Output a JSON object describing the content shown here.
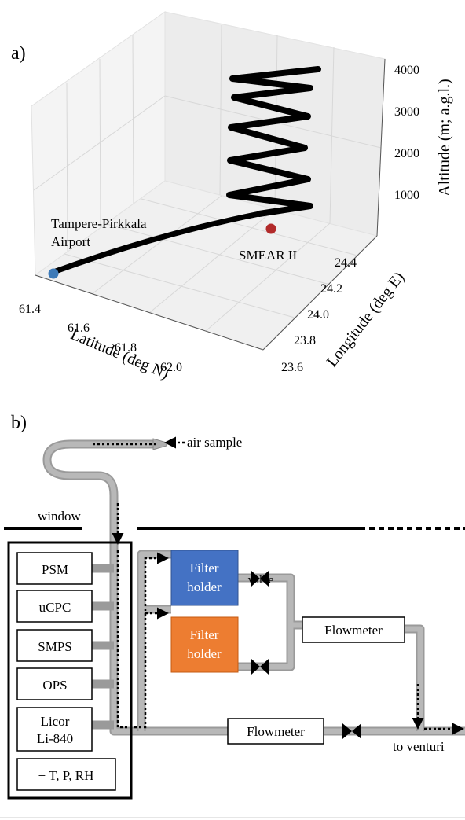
{
  "panel_a": {
    "label": "a)",
    "x_axis": {
      "label": "Latitude (deg N)",
      "ticks": [
        "61.4",
        "61.6",
        "61.8",
        "62.0"
      ]
    },
    "y_axis": {
      "label": "Longitude (deg E)",
      "ticks": [
        "23.6",
        "23.8",
        "24.0",
        "24.2",
        "24.4"
      ]
    },
    "z_axis": {
      "label": "Altitude (m; a.g.l.)",
      "ticks": [
        "1000",
        "2000",
        "3000",
        "4000"
      ]
    },
    "annotations": [
      "Tampere-Pirkkala",
      "Airport",
      "SMEAR II"
    ]
  },
  "panel_b": {
    "label": "b)",
    "air_sample": "air sample",
    "window": "window",
    "instruments": [
      "PSM",
      "uCPC",
      "SMPS",
      "OPS",
      "Licor",
      "Li-840",
      "+ T, P, RH"
    ],
    "filters": [
      [
        "Filter",
        "holder"
      ],
      [
        "Filter",
        "holder"
      ]
    ],
    "valve": "valve",
    "flowmeters": [
      "Flowmeter",
      "Flowmeter"
    ],
    "outlet": "to venturi"
  }
}
